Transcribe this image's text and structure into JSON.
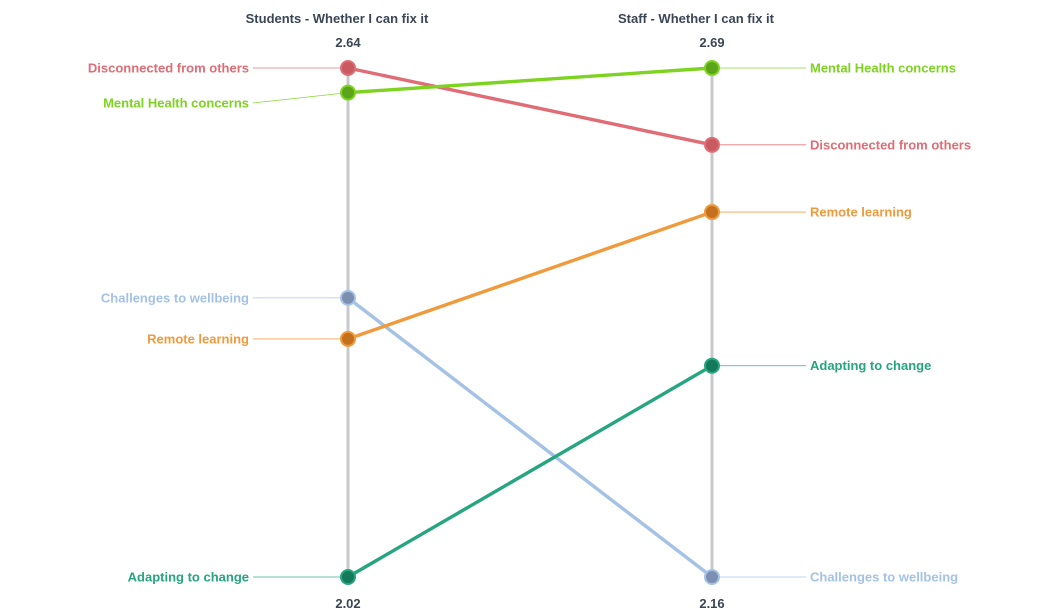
{
  "chart_data": {
    "type": "slope",
    "columns": [
      {
        "title": "Students - Whether I can fix it",
        "max_label": "2.64",
        "min_label": "2.02",
        "range": [
          2.02,
          2.64
        ]
      },
      {
        "title": "Staff - Whether I can fix it",
        "max_label": "2.69",
        "min_label": "2.16",
        "range": [
          2.16,
          2.69
        ]
      }
    ],
    "series": [
      {
        "name": "Disconnected from others",
        "color": "#e06c75",
        "values": [
          2.64,
          2.61
        ]
      },
      {
        "name": "Mental Health concerns",
        "color": "#7ed321",
        "values": [
          2.61,
          2.69
        ]
      },
      {
        "name": "Challenges to wellbeing",
        "color": "#a4c2e6",
        "values": [
          2.36,
          2.16
        ]
      },
      {
        "name": "Remote learning",
        "color": "#ef9a3c",
        "values": [
          2.31,
          2.54
        ]
      },
      {
        "name": "Adapting to change",
        "color": "#25a580",
        "values": [
          2.02,
          2.38
        ]
      }
    ],
    "marker_colors": {
      "Disconnected from others": "#c85a62",
      "Mental Health concerns": "#5aa51a",
      "Challenges to wellbeing": "#7d8fb0",
      "Remote learning": "#c4711d",
      "Adapting to change": "#157a5a"
    },
    "axis_color": "#c7c9cc"
  }
}
